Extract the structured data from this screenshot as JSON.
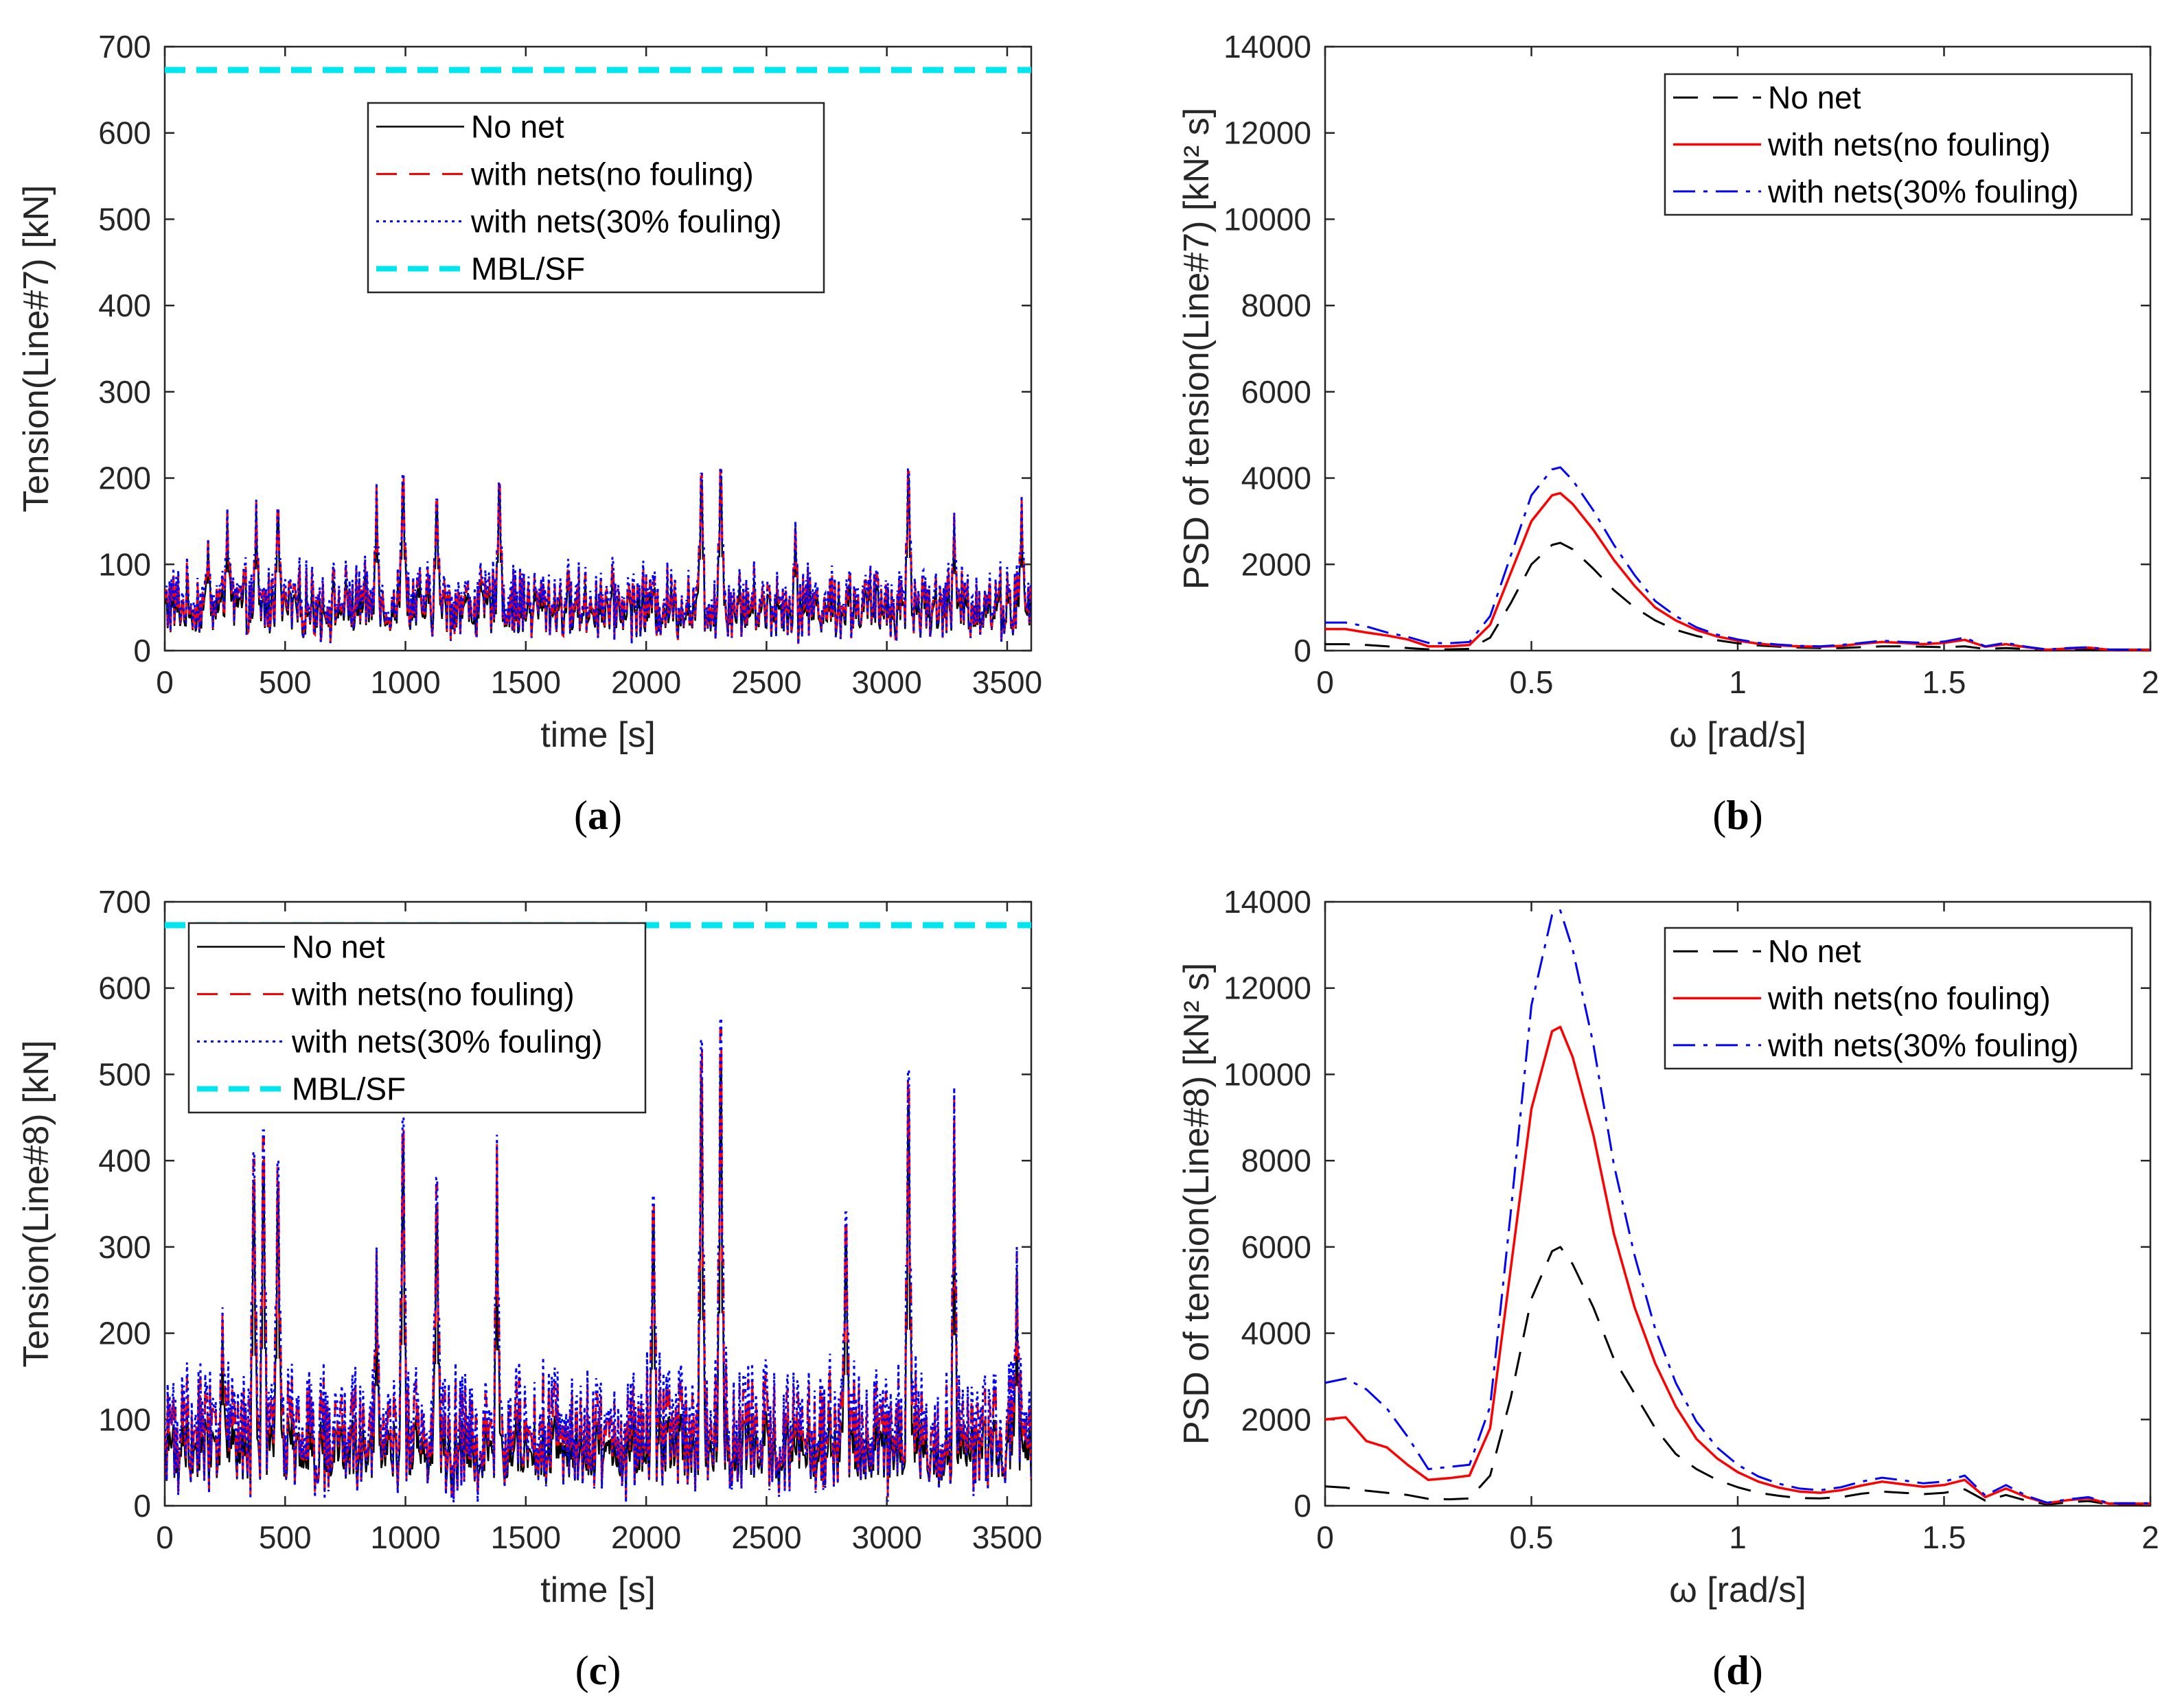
{
  "chart_data": [
    {
      "id": "a",
      "type": "line",
      "panel_label": "a",
      "xlabel": "time [s]",
      "ylabel": "Tension(Line#7) [kN]",
      "xlim": [
        0,
        3600
      ],
      "ylim": [
        0,
        700
      ],
      "xticks": [
        "0",
        "500",
        "1000",
        "1500",
        "2000",
        "2500",
        "3000",
        "3500"
      ],
      "yticks": [
        "0",
        "100",
        "200",
        "300",
        "400",
        "500",
        "600",
        "700"
      ],
      "legend_position": "top-center",
      "threshold": {
        "name": "MBL/SF",
        "value": 673
      },
      "series": [
        {
          "name": "No net",
          "mean": 48,
          "amplitude": 22
        },
        {
          "name": "with nets(no fouling)",
          "mean": 55,
          "amplitude": 27
        },
        {
          "name": "with nets(30% fouling)",
          "mean": 58,
          "amplitude": 29
        }
      ],
      "peaks": [
        [
          180,
          130
        ],
        [
          260,
          165
        ],
        [
          380,
          175
        ],
        [
          470,
          165
        ],
        [
          880,
          195
        ],
        [
          990,
          205
        ],
        [
          1130,
          175
        ],
        [
          1390,
          195
        ],
        [
          2230,
          205
        ],
        [
          2310,
          212
        ],
        [
          2620,
          150
        ],
        [
          3090,
          210
        ],
        [
          3280,
          160
        ],
        [
          3560,
          180
        ]
      ],
      "legend": [
        "No net",
        "with nets(no fouling)",
        "with nets(30% fouling)",
        "MBL/SF"
      ]
    },
    {
      "id": "b",
      "type": "line",
      "panel_label": "b",
      "xlabel": "ω [rad/s]",
      "ylabel": "PSD of tension(Line#7) [kN² s]",
      "xlim": [
        0,
        2
      ],
      "ylim": [
        0,
        14000
      ],
      "xticks": [
        "0",
        "0.5",
        "1",
        "1.5",
        "2"
      ],
      "yticks": [
        "0",
        "2000",
        "4000",
        "6000",
        "8000",
        "10000",
        "12000",
        "14000"
      ],
      "legend_position": "top-right",
      "x": [
        0,
        0.05,
        0.1,
        0.15,
        0.2,
        0.25,
        0.3,
        0.35,
        0.4,
        0.45,
        0.5,
        0.55,
        0.57,
        0.6,
        0.65,
        0.7,
        0.75,
        0.8,
        0.85,
        0.9,
        0.95,
        1.0,
        1.05,
        1.1,
        1.15,
        1.2,
        1.25,
        1.3,
        1.35,
        1.4,
        1.45,
        1.5,
        1.55,
        1.6,
        1.65,
        1.7,
        1.75,
        1.8,
        1.85,
        1.9,
        1.95,
        2.0
      ],
      "series": [
        {
          "name": "No net",
          "values": [
            150,
            150,
            130,
            100,
            60,
            30,
            30,
            40,
            300,
            1100,
            2000,
            2450,
            2500,
            2350,
            1900,
            1400,
            1000,
            700,
            480,
            340,
            240,
            170,
            120,
            90,
            70,
            60,
            60,
            80,
            100,
            100,
            90,
            80,
            100,
            40,
            60,
            40,
            10,
            20,
            30,
            10,
            10,
            10
          ]
        },
        {
          "name": "with nets(no fouling)",
          "values": [
            500,
            500,
            420,
            350,
            260,
            100,
            100,
            130,
            600,
            1800,
            3000,
            3600,
            3650,
            3400,
            2800,
            2100,
            1500,
            1000,
            700,
            480,
            330,
            230,
            160,
            120,
            100,
            90,
            110,
            160,
            200,
            180,
            150,
            180,
            250,
            90,
            150,
            80,
            20,
            50,
            70,
            20,
            20,
            20
          ]
        },
        {
          "name": "with nets(30% fouling)",
          "values": [
            650,
            650,
            560,
            420,
            320,
            180,
            170,
            200,
            800,
            2200,
            3600,
            4200,
            4250,
            3950,
            3250,
            2450,
            1750,
            1150,
            800,
            540,
            370,
            260,
            180,
            140,
            110,
            100,
            130,
            180,
            230,
            200,
            180,
            210,
            300,
            100,
            180,
            90,
            25,
            60,
            80,
            25,
            25,
            25
          ]
        }
      ],
      "legend": [
        "No net",
        "with nets(no fouling)",
        "with nets(30% fouling)"
      ]
    },
    {
      "id": "c",
      "type": "line",
      "panel_label": "c",
      "xlabel": "time [s]",
      "ylabel": "Tension(Line#8) [kN]",
      "xlim": [
        0,
        3600
      ],
      "ylim": [
        0,
        700
      ],
      "xticks": [
        "0",
        "500",
        "1000",
        "1500",
        "2000",
        "2500",
        "3000",
        "3500"
      ],
      "yticks": [
        "0",
        "100",
        "200",
        "300",
        "400",
        "500",
        "600",
        "700"
      ],
      "legend_position": "top-left",
      "threshold": {
        "name": "MBL/SF",
        "value": 673
      },
      "series": [
        {
          "name": "No net",
          "mean": 65,
          "amplitude": 30
        },
        {
          "name": "with nets(no fouling)",
          "mean": 85,
          "amplitude": 45
        },
        {
          "name": "with nets(30% fouling)",
          "mean": 92,
          "amplitude": 52
        }
      ],
      "peaks": [
        [
          240,
          230
        ],
        [
          370,
          410
        ],
        [
          410,
          435
        ],
        [
          470,
          400
        ],
        [
          880,
          300
        ],
        [
          990,
          450
        ],
        [
          1130,
          380
        ],
        [
          1380,
          430
        ],
        [
          2030,
          360
        ],
        [
          2230,
          540
        ],
        [
          2310,
          565
        ],
        [
          2830,
          340
        ],
        [
          3090,
          505
        ],
        [
          3280,
          485
        ],
        [
          3540,
          300
        ]
      ],
      "legend": [
        "No net",
        "with nets(no fouling)",
        "with nets(30% fouling)",
        "MBL/SF"
      ]
    },
    {
      "id": "d",
      "type": "line",
      "panel_label": "d",
      "xlabel": "ω [rad/s]",
      "ylabel": "PSD of tension(Line#8) [kN² s]",
      "xlim": [
        0,
        2
      ],
      "ylim": [
        0,
        14000
      ],
      "xticks": [
        "0",
        "0.5",
        "1",
        "1.5",
        "2"
      ],
      "yticks": [
        "0",
        "2000",
        "4000",
        "6000",
        "8000",
        "10000",
        "12000",
        "14000"
      ],
      "legend_position": "top-right",
      "x": [
        0,
        0.05,
        0.1,
        0.15,
        0.2,
        0.25,
        0.3,
        0.35,
        0.4,
        0.45,
        0.5,
        0.55,
        0.57,
        0.6,
        0.65,
        0.7,
        0.75,
        0.8,
        0.85,
        0.9,
        0.95,
        1.0,
        1.05,
        1.1,
        1.15,
        1.2,
        1.25,
        1.3,
        1.35,
        1.4,
        1.45,
        1.5,
        1.55,
        1.6,
        1.65,
        1.7,
        1.75,
        1.8,
        1.85,
        1.9,
        1.95,
        2.0
      ],
      "series": [
        {
          "name": "No net",
          "values": [
            450,
            420,
            350,
            300,
            250,
            160,
            150,
            170,
            700,
            2500,
            4800,
            5900,
            6000,
            5600,
            4600,
            3400,
            2600,
            1800,
            1200,
            850,
            600,
            430,
            300,
            230,
            180,
            170,
            200,
            280,
            330,
            300,
            270,
            300,
            380,
            120,
            250,
            120,
            30,
            80,
            110,
            30,
            30,
            30
          ]
        },
        {
          "name": "with nets(no fouling)",
          "values": [
            2000,
            2050,
            1500,
            1350,
            950,
            600,
            640,
            700,
            1800,
            5500,
            9200,
            11000,
            11100,
            10400,
            8600,
            6300,
            4600,
            3300,
            2300,
            1550,
            1100,
            780,
            560,
            420,
            330,
            300,
            360,
            470,
            560,
            500,
            440,
            480,
            600,
            200,
            400,
            200,
            60,
            130,
            170,
            50,
            50,
            50
          ]
        },
        {
          "name": "with nets(30% fouling)",
          "values": [
            2850,
            2950,
            2700,
            2250,
            1600,
            850,
            900,
            950,
            2300,
            6800,
            11600,
            13700,
            13800,
            12900,
            10700,
            7900,
            5800,
            4100,
            2850,
            1950,
            1350,
            950,
            680,
            510,
            400,
            360,
            430,
            560,
            650,
            590,
            520,
            560,
            700,
            240,
            480,
            230,
            70,
            150,
            200,
            60,
            60,
            60
          ]
        }
      ],
      "legend": [
        "No net",
        "with nets(no fouling)",
        "with nets(30% fouling)"
      ]
    }
  ],
  "colors": {
    "no_net_time": "#000000",
    "no_net_psd": "#000000",
    "no_fouling": "#ff0000",
    "fouling30": "#0000ff",
    "threshold": "#00e5ee"
  }
}
